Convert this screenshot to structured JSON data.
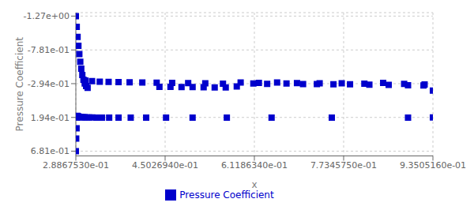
{
  "chart_data": {
    "type": "scatter",
    "xlabel": "x",
    "ylabel": "Pressure Coefficient",
    "xlim": [
      0.2886753,
      0.9350516
    ],
    "ylim": [
      0.75,
      -1.32
    ],
    "xticks": [
      {
        "value": 0.2886753,
        "label": "2.8867530e-01"
      },
      {
        "value": 0.4502694,
        "label": "4.5026940e-01"
      },
      {
        "value": 0.6118634,
        "label": "6.1186340e-01"
      },
      {
        "value": 0.7734575,
        "label": "7.7345750e-01"
      },
      {
        "value": 0.9350516,
        "label": "9.3505160e-01"
      }
    ],
    "yticks": [
      {
        "value": -1.27,
        "label": "-1.27e+00"
      },
      {
        "value": -0.781,
        "label": "-7.81e-01"
      },
      {
        "value": -0.294,
        "label": "-2.94e-01"
      },
      {
        "value": 0.194,
        "label": "1.94e-01"
      },
      {
        "value": 0.681,
        "label": "6.81e-01"
      }
    ],
    "grid": true,
    "legend": "bottom",
    "series": [
      {
        "name": "Pressure Coefficient",
        "color": "#0000cc",
        "marker": "square",
        "x": [
          0.2887,
          0.2903,
          0.2918,
          0.2933,
          0.295,
          0.2967,
          0.2985,
          0.3004,
          0.3025,
          0.3048,
          0.3073,
          0.31,
          0.306,
          0.318,
          0.332,
          0.348,
          0.366,
          0.386,
          0.409,
          0.435,
          0.463,
          0.492,
          0.523,
          0.555,
          0.587,
          0.62,
          0.653,
          0.689,
          0.73,
          0.77,
          0.811,
          0.845,
          0.883,
          0.92,
          0.29,
          0.2912,
          0.2924,
          0.2937,
          0.2952,
          0.297,
          0.2991,
          0.3015,
          0.3045,
          0.308,
          0.3125,
          0.3185,
          0.326,
          0.336,
          0.349,
          0.366,
          0.388,
          0.416,
          0.452,
          0.5,
          0.562,
          0.643,
          0.752,
          0.89,
          0.935,
          0.2887,
          0.2893,
          0.29,
          0.291,
          0.44,
          0.46,
          0.48,
          0.5,
          0.52,
          0.54,
          0.56,
          0.58,
          0.61,
          0.635,
          0.67,
          0.7,
          0.725,
          0.755,
          0.785,
          0.82,
          0.855,
          0.89,
          0.918,
          0.935
        ],
        "values": [
          -1.27,
          -1.115,
          -0.97,
          -0.84,
          -0.72,
          -0.61,
          -0.51,
          -0.42,
          -0.35,
          -0.295,
          -0.26,
          -0.235,
          -0.34,
          -0.33,
          -0.322,
          -0.318,
          -0.315,
          -0.313,
          -0.312,
          -0.308,
          -0.305,
          -0.302,
          -0.299,
          -0.294,
          -0.31,
          -0.305,
          -0.312,
          -0.301,
          -0.298,
          -0.298,
          -0.293,
          -0.305,
          -0.29,
          -0.282,
          0.194,
          0.17,
          0.178,
          0.182,
          0.186,
          0.188,
          0.19,
          0.191,
          0.192,
          0.193,
          0.194,
          0.195,
          0.196,
          0.196,
          0.196,
          0.197,
          0.197,
          0.197,
          0.197,
          0.197,
          0.197,
          0.197,
          0.197,
          0.197,
          0.195,
          0.681,
          0.5,
          0.35,
          0.194,
          -0.248,
          -0.248,
          -0.246,
          -0.244,
          -0.242,
          -0.24,
          -0.238,
          -0.253,
          -0.295,
          -0.29,
          -0.295,
          -0.288,
          -0.288,
          -0.284,
          -0.284,
          -0.28,
          -0.276,
          -0.272,
          -0.268,
          -0.195
        ]
      }
    ]
  }
}
